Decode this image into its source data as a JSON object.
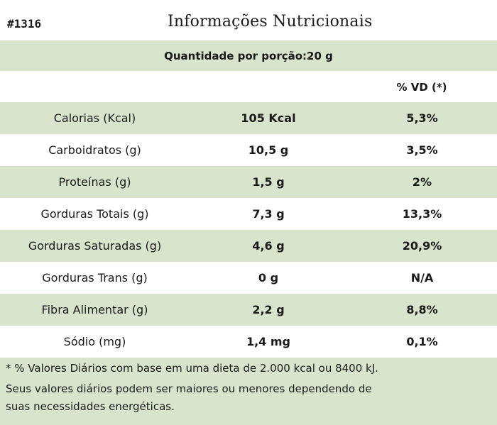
{
  "code": "#1316",
  "title": "Informações Nutricionais",
  "serving": "Quantidade por porção:20 g",
  "vd_header": "% VD (*)",
  "rows": [
    {
      "name": "Calorias (Kcal)",
      "amount": "105 Kcal",
      "vd": "5,3%"
    },
    {
      "name": "Carboidratos (g)",
      "amount": "10,5 g",
      "vd": "3,5%"
    },
    {
      "name": "Proteínas (g)",
      "amount": "1,5 g",
      "vd": "2%"
    },
    {
      "name": "Gorduras Totais (g)",
      "amount": "7,3 g",
      "vd": "13,3%"
    },
    {
      "name": "Gorduras Saturadas (g)",
      "amount": "4,6 g",
      "vd": "20,9%"
    },
    {
      "name": "Gorduras Trans (g)",
      "amount": "0 g",
      "vd": "N/A"
    },
    {
      "name": "Fibra Alimentar (g)",
      "amount": "2,2 g",
      "vd": "8,8%"
    },
    {
      "name": "Sódio (mg)",
      "amount": "1,4 mg",
      "vd": "0,1%"
    }
  ],
  "footnote": {
    "line1": "* % Valores Diários com base em uma dieta de 2.000 kcal ou 8400 kJ.",
    "line2": "Seus valores diários podem ser maiores ou menores dependendo  de",
    "line3": "suas necessidades energéticas."
  },
  "colors": {
    "band": "#d9e4cc"
  }
}
